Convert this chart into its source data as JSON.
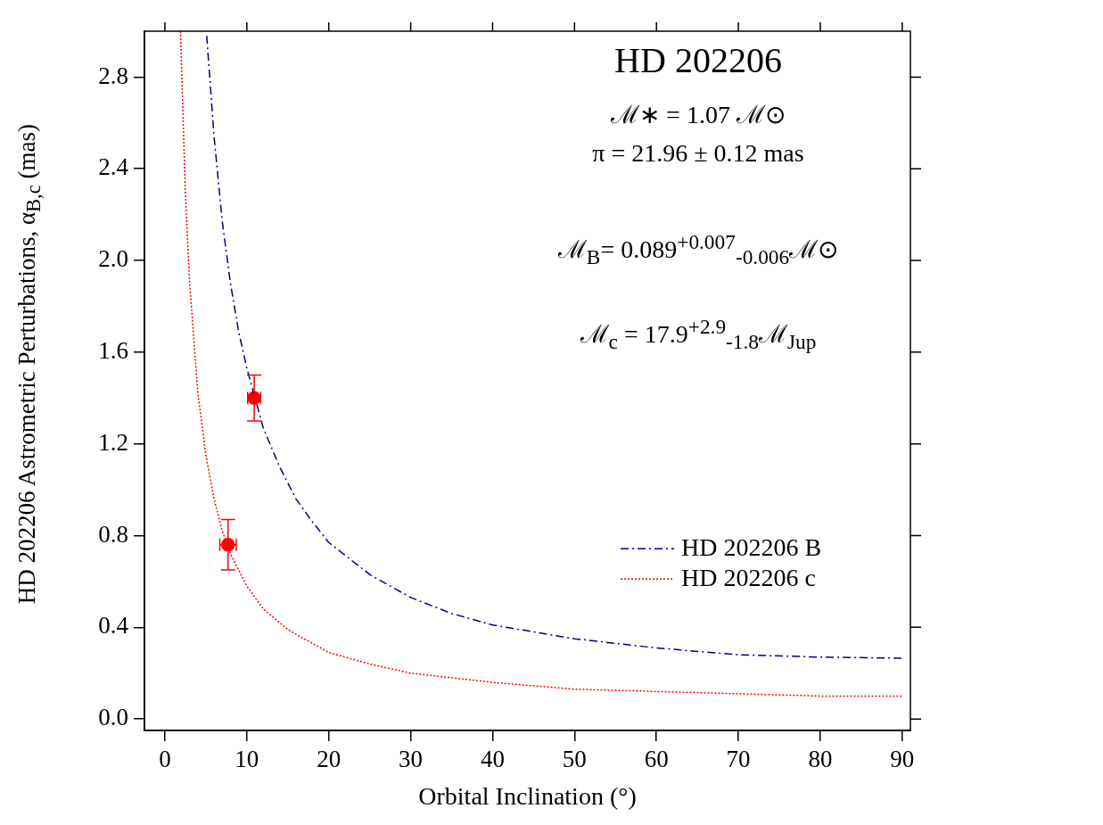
{
  "chart_data": {
    "type": "line",
    "title": "HD 202206",
    "xlabel": "Orbital Inclination (°)",
    "ylabel": "HD 202206 Astrometric Perturbations, α$_{B,c}$ (mas)",
    "annotations": [
      "ℳ∗ = 1.07 ℳ⊙",
      "π = 21.96 ± 0.12 mas",
      "ℳ$_{B}$= 0.089$^{+0.007}$$_{-0.006}$ℳ⊙",
      "ℳ$_{c}$ =  17.9$^{+2.9}$$_{-1.8}$ℳ$_{Jup}$"
    ],
    "xlim": [
      -2.5,
      91
    ],
    "xticks": [
      0,
      10,
      20,
      30,
      40,
      50,
      60,
      70,
      80,
      90
    ],
    "ylim": [
      -0.05,
      3.0
    ],
    "yticks": [
      {
        "value": 0,
        "label": "0.0"
      },
      0.4,
      0.8,
      1.2,
      1.6,
      {
        "value": 2,
        "label": "2.0"
      },
      2.4,
      2.8
    ],
    "grid": false,
    "legend": "right",
    "series": [
      {
        "name": "HD 202206 B",
        "color": "#000080",
        "line_style": "dashed",
        "marker": "none",
        "x": [
          5.1,
          6,
          7,
          8,
          9,
          10,
          12,
          14,
          16,
          18,
          20,
          25,
          30,
          35,
          40,
          50,
          60,
          70,
          80,
          90
        ],
        "values": [
          2.98,
          2.54,
          2.17,
          1.9,
          1.69,
          1.53,
          1.27,
          1.1,
          0.96,
          0.86,
          0.77,
          0.63,
          0.53,
          0.46,
          0.41,
          0.35,
          0.31,
          0.28,
          0.27,
          0.265
        ]
      },
      {
        "name": "HD 202206 c",
        "color": "#ff0000",
        "line_style": "dotted",
        "marker": "none",
        "x": [
          1.9,
          2.5,
          3,
          4,
          5,
          6,
          7,
          8,
          10,
          12,
          15,
          20,
          25,
          30,
          40,
          50,
          60,
          70,
          80,
          90
        ],
        "values": [
          3.0,
          2.29,
          1.91,
          1.43,
          1.15,
          0.96,
          0.82,
          0.72,
          0.58,
          0.48,
          0.39,
          0.29,
          0.24,
          0.2,
          0.16,
          0.13,
          0.12,
          0.11,
          0.1,
          0.1
        ]
      },
      {
        "type": "scatter",
        "color": "#ff0000",
        "marker": "circle",
        "x": [
          10.9,
          7.7
        ],
        "values": [
          1.4,
          0.76
        ],
        "errors": [
          0.1,
          0.11
        ],
        "xerrors": [
          0.8,
          1.0
        ]
      }
    ]
  }
}
